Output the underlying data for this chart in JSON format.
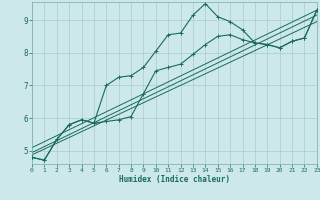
{
  "title": "",
  "xlabel": "Humidex (Indice chaleur)",
  "background_color": "#cce8e8",
  "grid_color": "#aacccc",
  "line_color": "#1a6b5a",
  "xlim": [
    0,
    23
  ],
  "ylim": [
    4.6,
    9.55
  ],
  "xticks": [
    0,
    1,
    2,
    3,
    4,
    5,
    6,
    7,
    8,
    9,
    10,
    11,
    12,
    13,
    14,
    15,
    16,
    17,
    18,
    19,
    20,
    21,
    22,
    23
  ],
  "yticks": [
    5,
    6,
    7,
    8,
    9
  ],
  "line1_x": [
    0,
    1,
    2,
    3,
    4,
    5,
    6,
    7,
    8,
    9,
    10,
    11,
    12,
    13,
    14,
    15,
    16,
    17,
    18,
    19,
    20,
    21,
    22,
    23
  ],
  "line1_y": [
    4.8,
    4.72,
    5.35,
    5.8,
    5.95,
    5.85,
    7.0,
    7.25,
    7.3,
    7.55,
    8.05,
    8.55,
    8.6,
    9.15,
    9.5,
    9.1,
    8.95,
    8.7,
    8.3,
    8.25,
    8.15,
    8.35,
    8.45,
    9.3
  ],
  "line2_x": [
    0,
    1,
    2,
    3,
    4,
    5,
    6,
    7,
    8,
    9,
    10,
    11,
    12,
    13,
    14,
    15,
    16,
    17,
    18,
    19,
    20,
    21,
    22,
    23
  ],
  "line2_y": [
    4.8,
    4.72,
    5.35,
    5.8,
    5.95,
    5.85,
    5.9,
    5.95,
    6.05,
    6.75,
    7.45,
    7.55,
    7.65,
    7.95,
    8.25,
    8.5,
    8.55,
    8.4,
    8.3,
    8.25,
    8.15,
    8.35,
    8.45,
    9.3
  ],
  "trend1_x": [
    0,
    23
  ],
  "trend1_y": [
    4.88,
    8.95
  ],
  "trend2_x": [
    0,
    23
  ],
  "trend2_y": [
    4.95,
    9.15
  ],
  "trend3_x": [
    0,
    23
  ],
  "trend3_y": [
    5.1,
    9.3
  ]
}
